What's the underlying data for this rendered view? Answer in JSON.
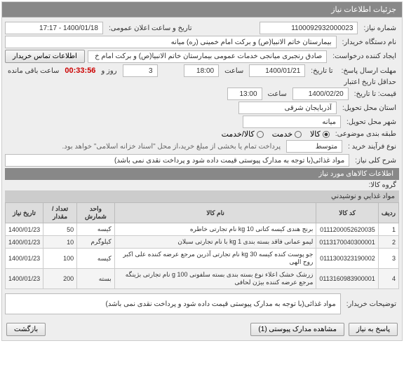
{
  "header": {
    "title": "جزئیات اطلاعات نیاز"
  },
  "fields": {
    "need_number_label": "شماره نیاز:",
    "need_number": "1100092932000023",
    "public_announce_label": "تاریخ و ساعت اعلان عمومی:",
    "public_announce": "1400/01/18 - 17:17",
    "buyer_org_label": "نام دستگاه خریدار:",
    "buyer_org": "بیمارستان خاتم الانبیا(ص) و برکت امام خمینی (ره) میانه",
    "creator_label": "ایجاد کننده درخواست:",
    "creator": "صادق رنجبری میانجی خدمات عمومی بیمارستان خاتم الانبیا(ص) و برکت امام خ",
    "contact_btn": "اطلاعات تماس خریدار",
    "deadline_label": "مهلت ارسال پاسخ:",
    "to_date_label": "تا تاریخ:",
    "deadline_date": "1400/01/21",
    "deadline_time_label": "ساعت",
    "deadline_time": "18:00",
    "days_num": "3",
    "days_label": "روز و",
    "timer": "00:33:56",
    "remain_label": "ساعت باقی مانده",
    "min_valid_label": "حداقل تاریخ اعتبار",
    "price_to_label": "قیمت: تا تاریخ:",
    "valid_date": "1400/02/20",
    "valid_time_label": "ساعت",
    "valid_time": "13:00",
    "province_label": "استان محل تحویل:",
    "province": "آذربایجان شرقی",
    "city_label": "شهر محل تحویل:",
    "city": "میانه",
    "pack_label": "طبقه بندی موضوعی:",
    "pack_goods": "کالا",
    "pack_service": "خدمت",
    "pack_both": "کالا/خدمت",
    "process_label": "نوع فرآیند خرید :",
    "process_val": "متوسط",
    "process_note": "پرداخت تمام یا بخشی از مبلغ خرید،از محل \"اسناد خزانه اسلامی\" خواهد بود.",
    "need_desc_label": "شرح کلی نیاز:",
    "need_desc": "مواد غذائی(با توجه به مدارک پیوستی قیمت داده شود و پرداخت نقدی نمی باشد)"
  },
  "items_section": {
    "title": "اطلاعات کالاهای مورد نیاز",
    "group_label": "گروه کالا:",
    "group_val": "مواد غذايي و نوشيدني"
  },
  "table": {
    "headers": {
      "row": "ردیف",
      "code": "کد کالا",
      "name": "نام کالا",
      "unit": "واحد شمارش",
      "qty": "تعداد / مقدار",
      "date": "تاریخ نیاز"
    },
    "rows": [
      {
        "n": "1",
        "code": "0111200052620035",
        "name": "برنج هندی کیسه کتانی 10 kg نام تجارتی خاطره",
        "unit": "کیسه",
        "qty": "50",
        "date": "1400/01/23"
      },
      {
        "n": "2",
        "code": "0113170040300001",
        "name": "لیمو عمانی فاقد بسته بندی 1 kg با نام تجارتی سبلان",
        "unit": "کیلوگرم",
        "qty": "10",
        "date": "1400/01/23"
      },
      {
        "n": "3",
        "code": "0111300323190002",
        "name": "جو پوست کنده کیسه 30 kg نام تجارتی آذرین مرجع عرضه کننده علی اکبر روح الهی",
        "unit": "کیسه",
        "qty": "100",
        "date": "1400/01/23"
      },
      {
        "n": "4",
        "code": "0113160983900001",
        "name": "زرشک خشک اعلاء نوع بسته بندی بسته سلفونی 100 g نام تجارتی بژینگه مرجع عرضه کننده بیژن لحافی",
        "unit": "بسته",
        "qty": "200",
        "date": "1400/01/23"
      }
    ]
  },
  "buyer_notes": {
    "label": "توضیحات خریدار:",
    "text": "مواد غذائی(با توجه به مدارک پیوستی قیمت داده شود و پرداخت نقدی نمی باشد)"
  },
  "footer": {
    "back": "پاسخ به نیاز",
    "attach": "مشاهده مدارک پیوستی (1)",
    "return": "بازگشت"
  }
}
